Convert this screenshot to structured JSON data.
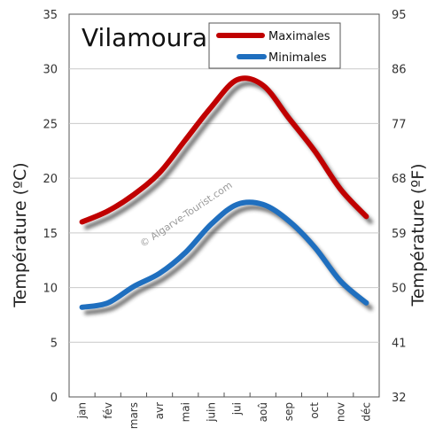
{
  "chart_data": {
    "type": "line",
    "title": "Vilamoura",
    "categories": [
      "jan",
      "fév",
      "mars",
      "avr",
      "mai",
      "juin",
      "jui",
      "aoû",
      "sep",
      "oct",
      "nov",
      "déc"
    ],
    "series": [
      {
        "name": "Maximales",
        "color": "#c00000",
        "values": [
          16,
          17,
          18.5,
          20.5,
          23.5,
          26.5,
          29,
          28.5,
          25.5,
          22.5,
          19,
          16.5
        ]
      },
      {
        "name": "Minimales",
        "color": "#1f6fbf",
        "values": [
          8.2,
          8.6,
          10.1,
          11.3,
          13.2,
          15.8,
          17.6,
          17.6,
          16.1,
          13.7,
          10.6,
          8.6
        ]
      }
    ],
    "ylabel": "Température (ºC)",
    "ylabel_right": "Température (ºF)",
    "ylim": [
      0,
      35
    ],
    "yticks": [
      "0",
      "5",
      "10",
      "15",
      "20",
      "25",
      "30",
      "35"
    ],
    "yticks_right": [
      "32",
      "41",
      "50",
      "59",
      "68",
      "77",
      "86",
      "95"
    ],
    "grid": true,
    "legend_position": "top-right",
    "watermark": "© Algarve-Tourist.com"
  }
}
